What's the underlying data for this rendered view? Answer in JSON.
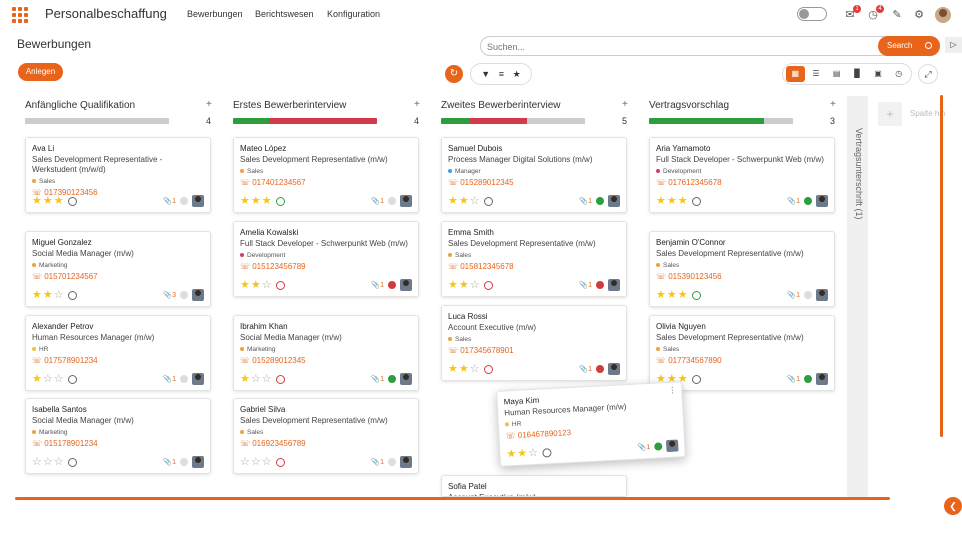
{
  "app": {
    "title": "Personalbeschaffung",
    "nav": [
      "Bewerbungen",
      "Berichtswesen",
      "Konfiguration"
    ],
    "notifications": {
      "bell_badge": "1",
      "clock_badge": "4"
    }
  },
  "page": {
    "title": "Bewerbungen",
    "anlegen": "Anlegen"
  },
  "search": {
    "placeholder": "Suchen...",
    "button": "Search"
  },
  "columns": [
    {
      "title": "Anfängliche Qualifikation",
      "count": "4",
      "bar": [
        {
          "color": "#cccccc",
          "pct": 100
        }
      ]
    },
    {
      "title": "Erstes Bewerberinterview",
      "count": "4",
      "bar": [
        {
          "color": "#2e9e3c",
          "pct": 25
        },
        {
          "color": "#d23b4b",
          "pct": 75
        }
      ]
    },
    {
      "title": "Zweites Bewerberinterview",
      "count": "5",
      "bar": [
        {
          "color": "#2e9e3c",
          "pct": 20
        },
        {
          "color": "#d23b4b",
          "pct": 40
        },
        {
          "color": "#cccccc",
          "pct": 40
        }
      ]
    },
    {
      "title": "Vertragsvorschlag",
      "count": "3",
      "bar": [
        {
          "color": "#2e9e3c",
          "pct": 80
        },
        {
          "color": "#cccccc",
          "pct": 20
        }
      ]
    }
  ],
  "collapsed_column": {
    "label": "Vertragsunterschrift (1)"
  },
  "add_column": {
    "label": "Spalte hinzufügen"
  },
  "cards": [
    {
      "col": 0,
      "name": "Ava Li",
      "position": "Sales Development Representative - Werkstudent (m/w/d)",
      "tag": "Sales",
      "tag_color": "#f0a040",
      "phone": "017390123456",
      "stars": 3,
      "status": "neutral",
      "attach": "1",
      "dot": "#dddddd"
    },
    {
      "col": 0,
      "name": "Miguel Gonzalez",
      "position": "Social Media Manager (m/w)",
      "tag": "Marketing",
      "tag_color": "#f0a040",
      "phone": "015701234567",
      "stars": 2,
      "status": "neutral",
      "attach": "3",
      "dot": "#dddddd"
    },
    {
      "col": 0,
      "name": "Alexander Petrov",
      "position": "Human Resources Manager (m/w)",
      "tag": "HR",
      "tag_color": "#f0c040",
      "phone": "017578901234",
      "stars": 1,
      "status": "neutral",
      "attach": "1",
      "dot": "#dddddd"
    },
    {
      "col": 0,
      "name": "Isabella Santos",
      "position": "Social Media Manager (m/w)",
      "tag": "Marketing",
      "tag_color": "#f0a040",
      "phone": "015178901234",
      "stars": 0,
      "status": "neutral",
      "attach": "1",
      "dot": "#dddddd"
    },
    {
      "col": 1,
      "name": "Mateo López",
      "position": "Sales Development Representative (m/w)",
      "tag": "Sales",
      "tag_color": "#f0a040",
      "phone": "017401234567",
      "stars": 3,
      "status": "ok",
      "attach": "1",
      "dot": "#dddddd"
    },
    {
      "col": 1,
      "name": "Amelia Kowalski",
      "position": "Full Stack Developer - Schwerpunkt Web (m/w)",
      "tag": "Development",
      "tag_color": "#d04060",
      "phone": "015123456789",
      "stars": 2,
      "status": "no",
      "attach": "1",
      "dot": "#d23b3b"
    },
    {
      "col": 1,
      "name": "Ibrahim Khan",
      "position": "Social Media Manager (m/w)",
      "tag": "Marketing",
      "tag_color": "#f0a040",
      "phone": "015289012345",
      "stars": 1,
      "status": "no",
      "attach": "1",
      "dot": "#2e9e3c"
    },
    {
      "col": 1,
      "name": "Gabriel Silva",
      "position": "Sales Development Representative (m/w)",
      "tag": "Sales",
      "tag_color": "#f0a040",
      "phone": "016923456789",
      "stars": 0,
      "status": "no",
      "attach": "1",
      "dot": "#dddddd"
    },
    {
      "col": 2,
      "name": "Samuel Dubois",
      "position": "Process Manager Digital Solutions (m/w)",
      "tag": "Manager",
      "tag_color": "#40a0e0",
      "phone": "015289012345",
      "stars": 2,
      "status": "neutral",
      "attach": "1",
      "dot": "#2e9e3c"
    },
    {
      "col": 2,
      "name": "Emma Smith",
      "position": "Sales Development Representative (m/w)",
      "tag": "Sales",
      "tag_color": "#f0a040",
      "phone": "015812345678",
      "stars": 2,
      "status": "no",
      "attach": "1",
      "dot": "#d23b3b"
    },
    {
      "col": 2,
      "name": "Luca Rossi",
      "position": "Account Executive (m/w)",
      "tag": "Sales",
      "tag_color": "#f0a040",
      "phone": "017345678901",
      "stars": 2,
      "status": "no",
      "attach": "1",
      "dot": "#d23b3b"
    },
    {
      "col": 2,
      "name": "Sofia Patel",
      "position": "Account Executive (m/w)",
      "tag": "",
      "tag_color": "#f0a040",
      "phone": "",
      "stars": 0,
      "status": "neutral",
      "attach": "",
      "dot": ""
    },
    {
      "col": 3,
      "name": "Aria Yamamoto",
      "position": "Full Stack Developer - Schwerpunkt Web (m/w)",
      "tag": "Development",
      "tag_color": "#d04060",
      "phone": "017612345678",
      "stars": 3,
      "status": "neutral",
      "attach": "1",
      "dot": "#2e9e3c"
    },
    {
      "col": 3,
      "name": "Benjamin O'Connor",
      "position": "Sales Development Representative (m/w)",
      "tag": "Sales",
      "tag_color": "#f0a040",
      "phone": "015390123456",
      "stars": 3,
      "status": "ok",
      "attach": "1",
      "dot": "#dddddd"
    },
    {
      "col": 3,
      "name": "Olivia Nguyen",
      "position": "Sales Development Representative (m/w)",
      "tag": "Sales",
      "tag_color": "#f0a040",
      "phone": "017734567890",
      "stars": 3,
      "status": "neutral",
      "attach": "1",
      "dot": "#2e9e3c"
    }
  ],
  "dragging_card": {
    "name": "Maya Kim",
    "position": "Human Resources Manager (m/w)",
    "tag": "HR",
    "tag_color": "#f0c040",
    "phone": "016467890123",
    "stars": 2,
    "status": "neutral",
    "attach": "1",
    "dot": "#2e9e3c"
  }
}
